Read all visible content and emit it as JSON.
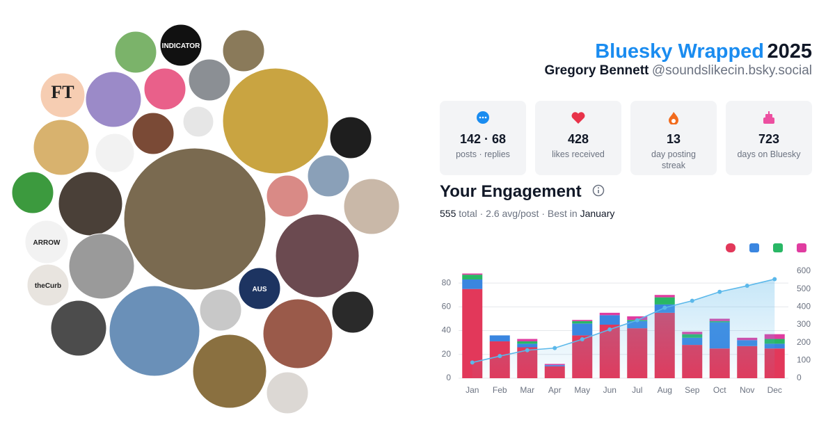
{
  "header": {
    "title": "Bluesky Wrapped",
    "year": "2025",
    "name": "Gregory Bennett",
    "handle": "@soundslikecin.bsky.social"
  },
  "stats": [
    {
      "value": "142 · 68",
      "label": "posts · replies"
    },
    {
      "value": 428,
      "label": "likes received"
    },
    {
      "value": 13,
      "label": "day posting streak"
    },
    {
      "value": 723,
      "label": "days on Bluesky"
    }
  ],
  "avatar_labels": {
    "ft": "FT",
    "indicator": "INDICATOR",
    "arrow": "ARROW",
    "curb": "theCurb",
    "aus": "AUS"
  },
  "engagement": {
    "title": "Your Engagement",
    "summary": [
      "555",
      "total ·",
      "2.6 avg/post ·",
      "Best in",
      "January"
    ]
  },
  "chart_data": {
    "type": "bar",
    "stacked": true,
    "grid": true,
    "categories": [
      "Jan",
      "Feb",
      "Mar",
      "Apr",
      "May",
      "Jun",
      "Jul",
      "Aug",
      "Sep",
      "Oct",
      "Nov",
      "Dec"
    ],
    "series": [
      {
        "color": "#e2385a",
        "values": [
          75,
          31,
          26,
          10,
          36,
          45,
          42,
          55,
          28,
          25,
          27,
          25
        ]
      },
      {
        "color": "#3a86e0",
        "values": [
          8,
          5,
          3,
          1,
          10,
          8,
          6,
          7,
          6,
          22,
          5,
          4
        ]
      },
      {
        "color": "#29b765",
        "values": [
          4,
          0,
          2,
          0,
          2,
          0,
          1,
          6,
          3,
          1,
          0,
          4
        ]
      },
      {
        "color": "#e03ca0",
        "values": [
          1,
          0,
          2,
          1,
          1,
          2,
          3,
          2,
          2,
          2,
          2,
          4
        ]
      },
      {
        "type": "line",
        "axis": "y2",
        "area": true,
        "color": "#5bb8ea",
        "values": [
          88,
          124,
          157,
          169,
          218,
          273,
          325,
          395,
          434,
          484,
          518,
          555
        ]
      }
    ],
    "ylim": [
      0,
      90
    ],
    "yticks": [
      0,
      20,
      40,
      60,
      80
    ],
    "y2lim": [
      0,
      600
    ],
    "y2ticks": [
      0,
      100,
      200,
      300,
      400,
      500,
      600
    ]
  }
}
